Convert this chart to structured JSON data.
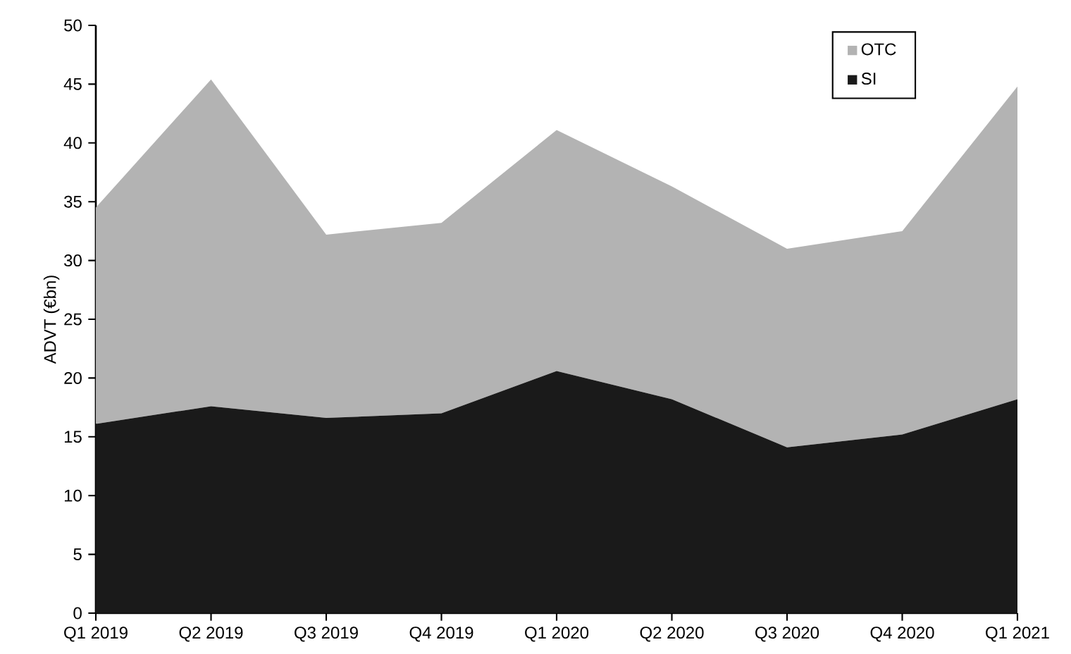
{
  "chart_data": {
    "type": "area",
    "stacked": true,
    "ylabel": "ADVT (€bn)",
    "categories": [
      "Q1 2019",
      "Q2 2019",
      "Q3 2019",
      "Q4 2019",
      "Q1 2020",
      "Q2 2020",
      "Q3 2020",
      "Q4 2020",
      "Q1 2021"
    ],
    "series": [
      {
        "name": "SI",
        "color": "#1a1a1a",
        "values": [
          16.1,
          17.6,
          16.6,
          17.0,
          20.6,
          18.2,
          14.1,
          15.2,
          18.2
        ]
      },
      {
        "name": "OTC",
        "color": "#b3b3b3",
        "values": [
          18.4,
          27.8,
          15.6,
          16.2,
          20.5,
          18.1,
          16.9,
          17.3,
          26.6
        ]
      }
    ],
    "ylim": [
      0,
      50
    ],
    "yticks": [
      0,
      5,
      10,
      15,
      20,
      25,
      30,
      35,
      40,
      45,
      50
    ],
    "grid": false,
    "legend": "top right"
  }
}
